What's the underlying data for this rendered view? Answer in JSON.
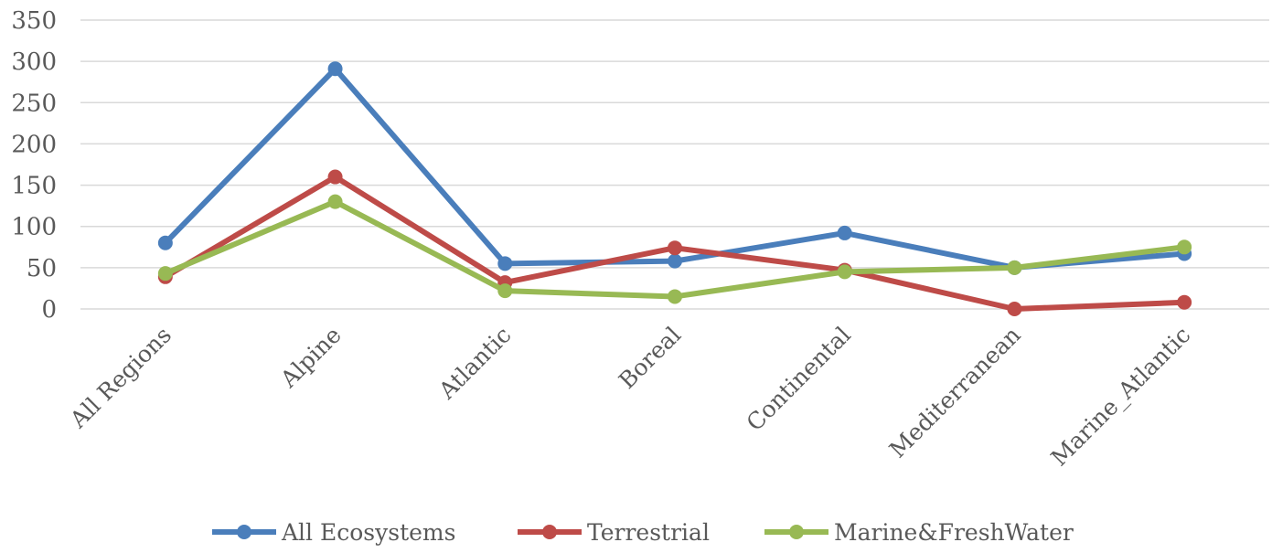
{
  "chart_data": {
    "type": "line",
    "title": "",
    "xlabel": "",
    "ylabel": "",
    "ylim": [
      0,
      350
    ],
    "yticks": [
      0,
      50,
      100,
      150,
      200,
      250,
      300,
      350
    ],
    "grid": true,
    "legend_position": "bottom",
    "categories": [
      "All Regions",
      "Alpine",
      "Atlantic",
      "Boreal",
      "Continental",
      "Mediterranean",
      "Marine_Atlantic"
    ],
    "series": [
      {
        "name": "All Ecosystems",
        "color": "#4a7ebb",
        "values": [
          80,
          291,
          55,
          58,
          92,
          50,
          67
        ]
      },
      {
        "name": "Terrestrial",
        "color": "#be4b48",
        "values": [
          39,
          160,
          32,
          74,
          47,
          0,
          8
        ]
      },
      {
        "name": "Marine&FreshWater",
        "color": "#98b954",
        "values": [
          43,
          130,
          22,
          15,
          45,
          50,
          75
        ]
      }
    ]
  }
}
